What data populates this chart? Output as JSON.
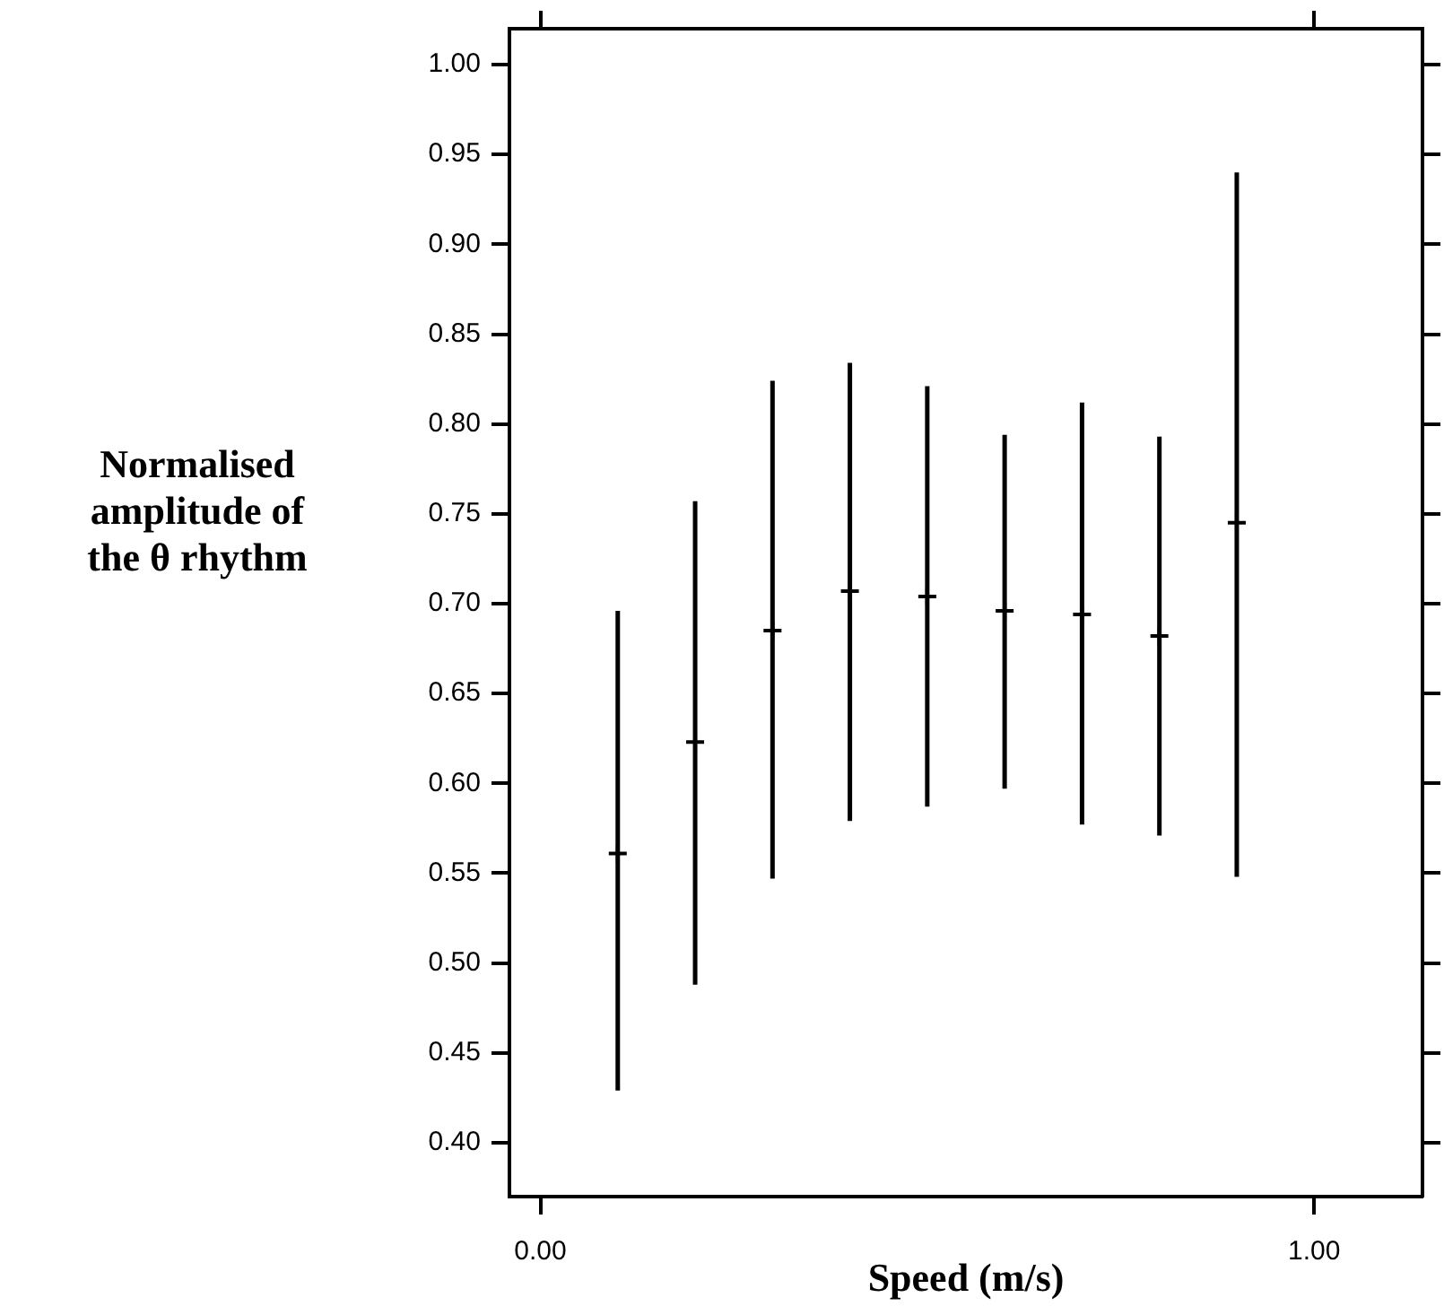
{
  "chart_data": {
    "type": "scatter",
    "xlabel": "Speed (m/s)",
    "ylabel": "Normalised amplitude of the θ rhythm",
    "x": [
      0.1,
      0.2,
      0.3,
      0.4,
      0.5,
      0.6,
      0.7,
      0.8,
      0.9
    ],
    "series": [
      {
        "color": "#000000",
        "values": [
          0.561,
          0.623,
          0.685,
          0.707,
          0.704,
          0.696,
          0.694,
          0.682,
          0.745
        ],
        "errors": [
          [
            0.429,
            0.696
          ],
          [
            0.488,
            0.757
          ],
          [
            0.547,
            0.824
          ],
          [
            0.579,
            0.834
          ],
          [
            0.587,
            0.821
          ],
          [
            0.597,
            0.794
          ],
          [
            0.577,
            0.812
          ],
          [
            0.571,
            0.793
          ],
          [
            0.548,
            0.94
          ]
        ]
      }
    ],
    "xlim": [
      -0.04,
      1.14
    ],
    "ylim": [
      0.37,
      1.02
    ],
    "xticks": [
      {
        "value": 0,
        "label": "0.00"
      },
      {
        "value": 1,
        "label": "1.00"
      }
    ],
    "yticks": [
      {
        "value": 0.4,
        "label": "0.40"
      },
      {
        "value": 0.45,
        "label": "0.45"
      },
      {
        "value": 0.5,
        "label": "0.50"
      },
      {
        "value": 0.55,
        "label": "0.55"
      },
      {
        "value": 0.6,
        "label": "0.60"
      },
      {
        "value": 0.65,
        "label": "0.65"
      },
      {
        "value": 0.7,
        "label": "0.70"
      },
      {
        "value": 0.75,
        "label": "0.75"
      },
      {
        "value": 0.8,
        "label": "0.80"
      },
      {
        "value": 0.85,
        "label": "0.85"
      },
      {
        "value": 0.9,
        "label": "0.90"
      },
      {
        "value": 0.95,
        "label": "0.95"
      },
      {
        "value": 1,
        "label": "1.00"
      }
    ],
    "grid": false,
    "legend": false,
    "marker": "cross"
  }
}
